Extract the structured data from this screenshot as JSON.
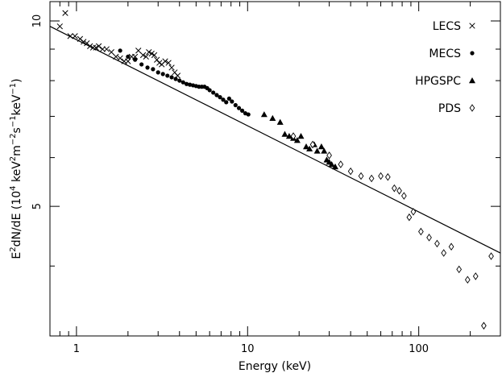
{
  "chart_data": {
    "type": "scatter",
    "title": "",
    "xlabel": "Energy (keV)",
    "ylabel": {
      "text": "E²dN/dE (10⁴ keV²m⁻²s⁻¹keV⁻¹)",
      "pieces": [
        {
          "t": "E"
        },
        {
          "t": "2",
          "sup": true
        },
        {
          "t": "dN/dE (10"
        },
        {
          "t": "4",
          "sup": true
        },
        {
          "t": " keV"
        },
        {
          "t": "2",
          "sup": true
        },
        {
          "t": "m"
        },
        {
          "t": "−2",
          "sup": true
        },
        {
          "t": "s"
        },
        {
          "t": "−1",
          "sup": true
        },
        {
          "t": "keV"
        },
        {
          "t": "−1",
          "sup": true
        },
        {
          "t": ")"
        }
      ]
    },
    "xscale": "log",
    "yscale": "log",
    "xlim": [
      0.7,
      300
    ],
    "ylim": [
      3.08,
      10.75
    ],
    "xticks": [
      {
        "value": 1,
        "label": "1"
      },
      {
        "value": 10,
        "label": "10"
      },
      {
        "value": 100,
        "label": "100"
      }
    ],
    "yticks": [
      {
        "value": 5,
        "label": "5"
      },
      {
        "value": 10,
        "label": "10"
      }
    ],
    "legend_position": "top-right",
    "model_line": {
      "x": [
        0.7,
        300
      ],
      "y": [
        9.8,
        4.2
      ]
    },
    "series": [
      {
        "name": "LECS",
        "marker": "cross",
        "points": [
          [
            0.8,
            9.8
          ],
          [
            0.86,
            10.3
          ],
          [
            0.92,
            9.45
          ],
          [
            0.98,
            9.45
          ],
          [
            1.05,
            9.35
          ],
          [
            1.1,
            9.25
          ],
          [
            1.15,
            9.2
          ],
          [
            1.2,
            9.1
          ],
          [
            1.25,
            9.05
          ],
          [
            1.3,
            9.05
          ],
          [
            1.35,
            9.1
          ],
          [
            1.42,
            9.0
          ],
          [
            1.5,
            9.0
          ],
          [
            1.6,
            8.9
          ],
          [
            1.7,
            8.75
          ],
          [
            1.8,
            8.7
          ],
          [
            1.9,
            8.6
          ],
          [
            2.0,
            8.6
          ],
          [
            2.1,
            8.75
          ],
          [
            2.2,
            8.75
          ],
          [
            2.3,
            8.95
          ],
          [
            2.45,
            8.8
          ],
          [
            2.55,
            8.75
          ],
          [
            2.65,
            8.9
          ],
          [
            2.75,
            8.85
          ],
          [
            2.85,
            8.8
          ],
          [
            2.95,
            8.65
          ],
          [
            3.05,
            8.55
          ],
          [
            3.15,
            8.5
          ],
          [
            3.3,
            8.6
          ],
          [
            3.45,
            8.55
          ],
          [
            3.6,
            8.4
          ],
          [
            3.75,
            8.25
          ],
          [
            3.9,
            8.15
          ]
        ]
      },
      {
        "name": "MECS",
        "marker": "dot",
        "points": [
          [
            1.8,
            8.95
          ],
          [
            2.0,
            8.75
          ],
          [
            2.2,
            8.65
          ],
          [
            2.4,
            8.5
          ],
          [
            2.6,
            8.4
          ],
          [
            2.8,
            8.35
          ],
          [
            3.0,
            8.25
          ],
          [
            3.2,
            8.2
          ],
          [
            3.4,
            8.15
          ],
          [
            3.6,
            8.1
          ],
          [
            3.8,
            8.05
          ],
          [
            4.0,
            8.0
          ],
          [
            4.2,
            7.95
          ],
          [
            4.4,
            7.9
          ],
          [
            4.6,
            7.88
          ],
          [
            4.8,
            7.86
          ],
          [
            5.0,
            7.84
          ],
          [
            5.2,
            7.82
          ],
          [
            5.4,
            7.82
          ],
          [
            5.6,
            7.82
          ],
          [
            5.8,
            7.78
          ],
          [
            6.0,
            7.72
          ],
          [
            6.3,
            7.65
          ],
          [
            6.6,
            7.58
          ],
          [
            6.9,
            7.52
          ],
          [
            7.2,
            7.45
          ],
          [
            7.5,
            7.38
          ],
          [
            7.8,
            7.48
          ],
          [
            8.1,
            7.4
          ],
          [
            8.5,
            7.3
          ],
          [
            8.9,
            7.22
          ],
          [
            9.3,
            7.15
          ],
          [
            9.7,
            7.08
          ],
          [
            10.1,
            7.05
          ]
        ]
      },
      {
        "name": "HPGSPC",
        "marker": "triangle",
        "points": [
          [
            12.5,
            7.05
          ],
          [
            14.0,
            6.95
          ],
          [
            15.5,
            6.85
          ],
          [
            16.5,
            6.55
          ],
          [
            17.5,
            6.5
          ],
          [
            18.5,
            6.45
          ],
          [
            19.5,
            6.4
          ],
          [
            20.5,
            6.5
          ],
          [
            22.0,
            6.25
          ],
          [
            23.0,
            6.2
          ],
          [
            24.5,
            6.3
          ],
          [
            25.5,
            6.15
          ],
          [
            27.0,
            6.25
          ],
          [
            28.0,
            6.15
          ],
          [
            29.0,
            5.95
          ],
          [
            30.0,
            5.9
          ],
          [
            31.0,
            5.85
          ],
          [
            32.5,
            5.8
          ]
        ]
      },
      {
        "name": "PDS",
        "marker": "diamond",
        "points": [
          [
            18.5,
            6.5
          ],
          [
            24.0,
            6.3
          ],
          [
            30.0,
            6.05
          ],
          [
            35.0,
            5.85
          ],
          [
            40.0,
            5.7
          ],
          [
            46.0,
            5.6
          ],
          [
            53.0,
            5.55
          ],
          [
            60.0,
            5.6
          ],
          [
            66.0,
            5.58
          ],
          [
            72.0,
            5.35
          ],
          [
            77.0,
            5.3
          ],
          [
            82.0,
            5.2
          ],
          [
            88.0,
            4.8
          ],
          [
            93.0,
            4.9
          ],
          [
            103.0,
            4.55
          ],
          [
            115.0,
            4.45
          ],
          [
            128.0,
            4.35
          ],
          [
            140.0,
            4.2
          ],
          [
            155.0,
            4.3
          ],
          [
            172.0,
            3.95
          ],
          [
            193.0,
            3.8
          ],
          [
            215.0,
            3.85
          ],
          [
            240.0,
            3.2
          ],
          [
            265.0,
            4.15
          ]
        ]
      }
    ]
  }
}
